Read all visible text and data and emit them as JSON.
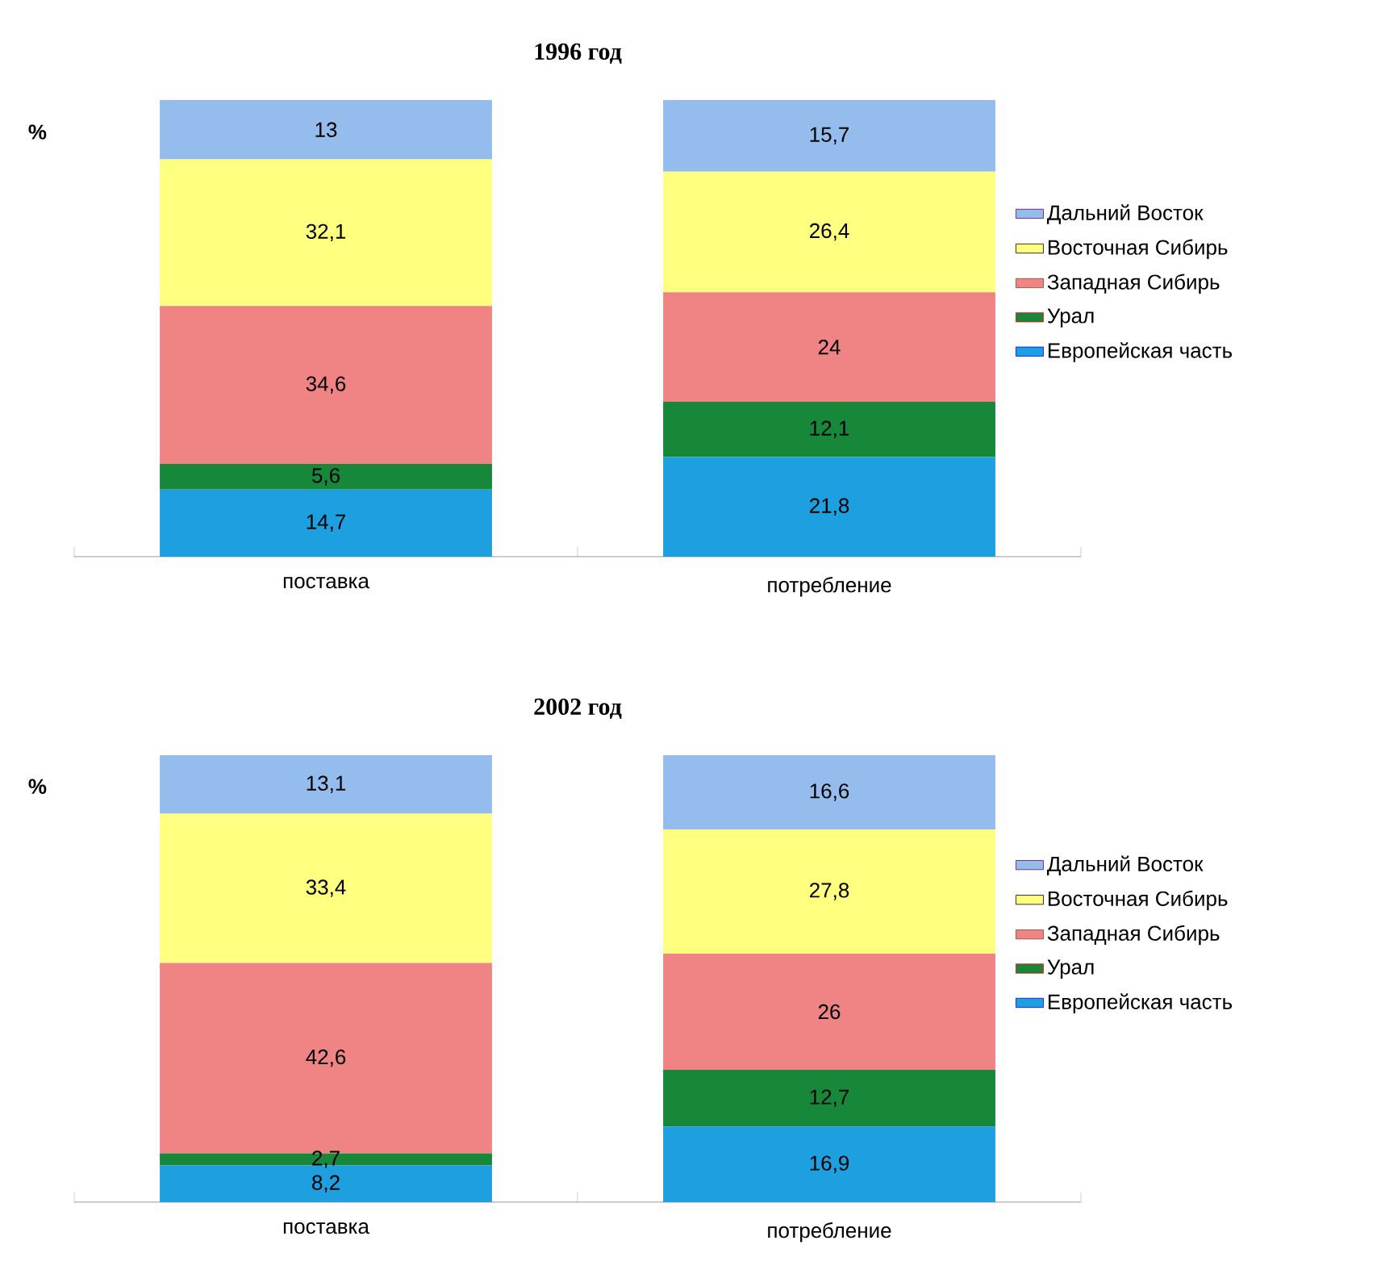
{
  "chart_data": [
    {
      "type": "bar",
      "title": "1996 год",
      "ylabel": "%",
      "categories": [
        "поставка",
        "потребление"
      ],
      "stacked": true,
      "legend": "right",
      "series": [
        {
          "name": "Европейская часть",
          "color": "#1ea0e0",
          "values": [
            14.7,
            21.8
          ],
          "value_labels": [
            "14,7",
            "21,8"
          ]
        },
        {
          "name": "Урал",
          "color": "#17883a",
          "values": [
            5.6,
            12.1
          ],
          "value_labels": [
            "5,6",
            "12,1"
          ]
        },
        {
          "name": "Западная Сибирь",
          "color": "#f08484",
          "values": [
            34.6,
            24
          ],
          "value_labels": [
            "34,6",
            "24"
          ]
        },
        {
          "name": "Восточная Сибирь",
          "color": "#ffff80",
          "values": [
            32.1,
            26.4
          ],
          "value_labels": [
            "32,1",
            "26,4"
          ]
        },
        {
          "name": "Дальний Восток",
          "color": "#94bcec",
          "values": [
            13,
            15.7
          ],
          "value_labels": [
            "13",
            "15,7"
          ]
        }
      ]
    },
    {
      "type": "bar",
      "title": "2002 год",
      "ylabel": "%",
      "categories": [
        "поставка",
        "потребление"
      ],
      "stacked": true,
      "legend": "right",
      "series": [
        {
          "name": "Европейская часть",
          "color": "#1ea0e0",
          "values": [
            8.2,
            16.9
          ],
          "value_labels": [
            "8,2",
            "16,9"
          ]
        },
        {
          "name": "Урал",
          "color": "#17883a",
          "values": [
            2.7,
            12.7
          ],
          "value_labels": [
            "2,7",
            "12,7"
          ]
        },
        {
          "name": "Западная Сибирь",
          "color": "#f08484",
          "values": [
            42.6,
            26
          ],
          "value_labels": [
            "42,6",
            "26"
          ]
        },
        {
          "name": "Восточная Сибирь",
          "color": "#ffff80",
          "values": [
            33.4,
            27.8
          ],
          "value_labels": [
            "33,4",
            "27,8"
          ]
        },
        {
          "name": "Дальний Восток",
          "color": "#94bcec",
          "values": [
            13.1,
            16.6
          ],
          "value_labels": [
            "13,1",
            "16,6"
          ]
        }
      ]
    }
  ]
}
